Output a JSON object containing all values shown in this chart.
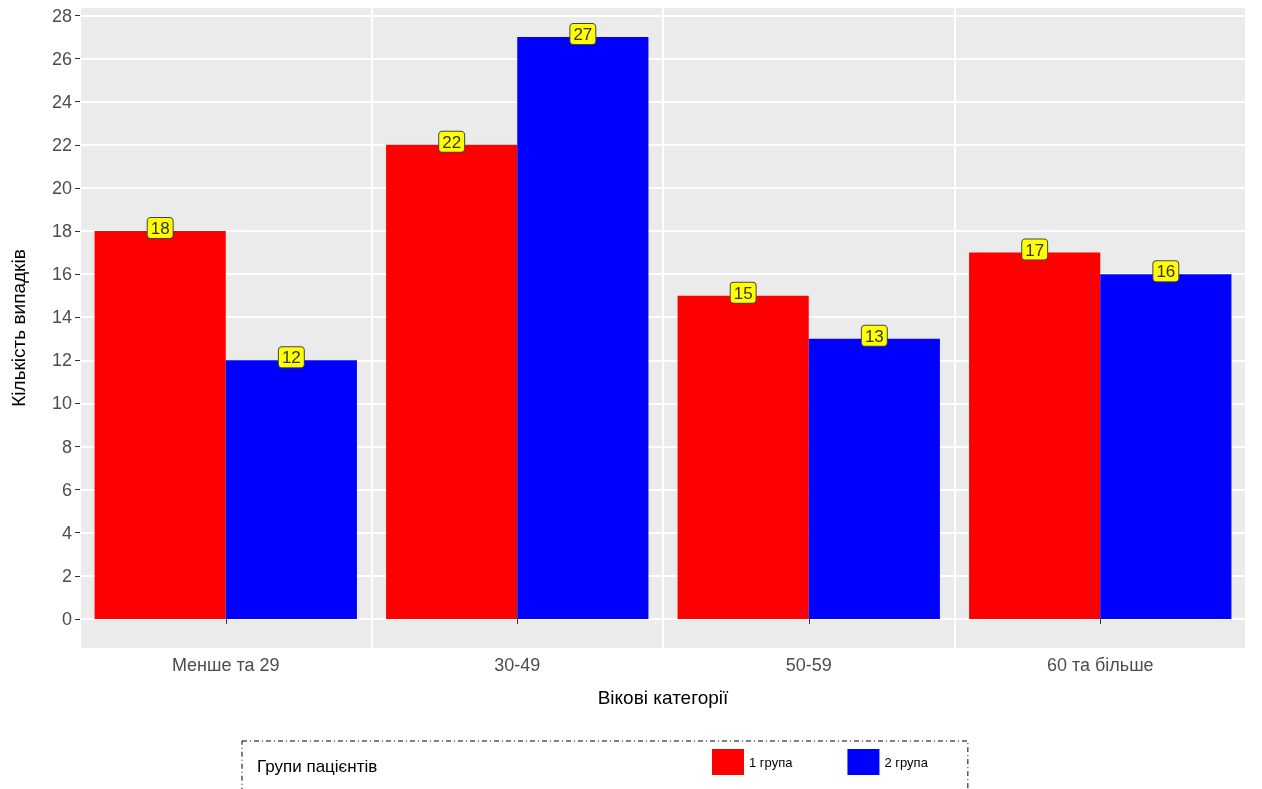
{
  "chart_data": {
    "type": "bar",
    "xlabel": "Вікові категорії",
    "ylabel": "Кількість випадків",
    "legend_title": "Групи пацієнтів",
    "categories": [
      "Менше та 29",
      "30-49",
      "50-59",
      "60 та більше"
    ],
    "series": [
      {
        "name": "1 група",
        "color": "#ff0000",
        "values": [
          18,
          22,
          15,
          17
        ]
      },
      {
        "name": "2 група",
        "color": "#0000ff",
        "values": [
          12,
          27,
          13,
          16
        ]
      }
    ],
    "ylim": [
      -1.35,
      28.35
    ],
    "yticks": [
      0,
      2,
      4,
      6,
      8,
      10,
      12,
      14,
      16,
      18,
      20,
      22,
      24,
      26,
      28
    ],
    "grid": true,
    "legend": "bottom",
    "data_labels": true
  }
}
